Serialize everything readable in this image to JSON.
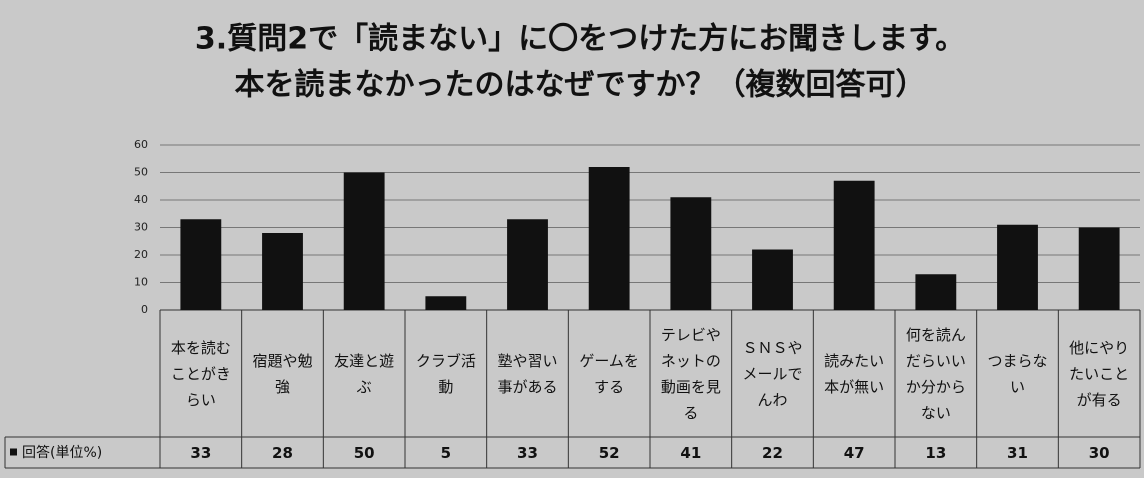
{
  "chart_data": {
    "type": "bar",
    "title": "3.質問2で「読まない」に〇をつけた方にお聞きします。",
    "subtitle": "本を読まなかったのはなぜですか？（複数回答可）",
    "categories": [
      "本を読むことがきらい",
      "宿題や勉強",
      "友達と遊ぶ",
      "クラブ活動",
      "塾や習い事がある",
      "ゲームをする",
      "テレビやネットの動画を見る",
      "ＳＮＳやメールでんわ",
      "読みたい本が無い",
      "何を読んだらいいか分からない",
      "つまらない",
      "他にやりたいことが有る"
    ],
    "series": [
      {
        "name": "回答(単位%)",
        "color": "#111111",
        "values": [
          33,
          28,
          50,
          5,
          33,
          52,
          41,
          22,
          47,
          13,
          31,
          30
        ]
      }
    ],
    "ylim": [
      0,
      60
    ],
    "yticks": [
      0,
      10,
      20,
      30,
      40,
      50,
      60
    ],
    "grid": true
  }
}
